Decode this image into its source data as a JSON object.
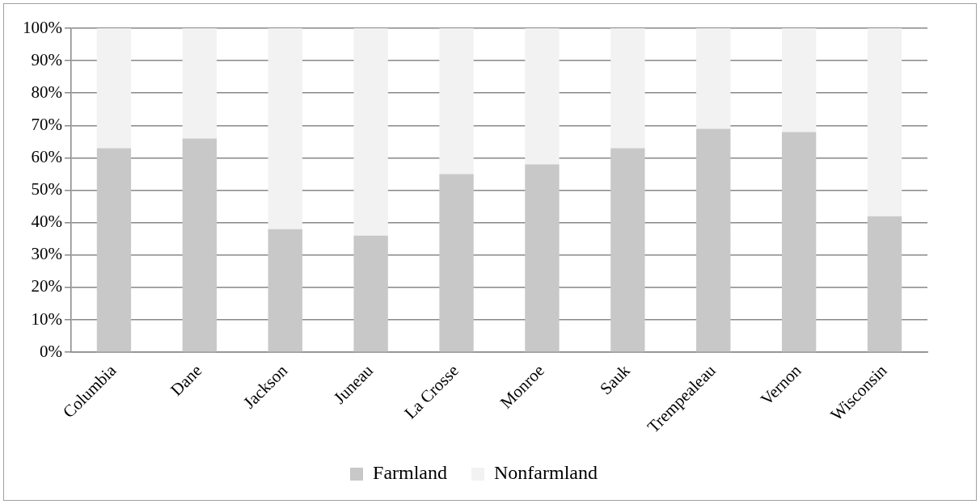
{
  "chart_data": {
    "type": "bar",
    "stacked": true,
    "categories": [
      "Columbia",
      "Dane",
      "Jackson",
      "Juneau",
      "La Crosse",
      "Monroe",
      "Sauk",
      "Trempealeau",
      "Vernon",
      "Wisconsin"
    ],
    "series": [
      {
        "name": "Farmland",
        "color": "#c8c8c8",
        "values": [
          63,
          66,
          38,
          36,
          55,
          58,
          63,
          69,
          68,
          42
        ]
      },
      {
        "name": "Nonfarmland",
        "color": "#f2f2f2",
        "values": [
          37,
          34,
          62,
          64,
          45,
          42,
          37,
          31,
          32,
          58
        ]
      }
    ],
    "ylim": [
      0,
      100
    ],
    "yticks": [
      {
        "value": 0,
        "label": "0%"
      },
      {
        "value": 10,
        "label": "10%"
      },
      {
        "value": 20,
        "label": "20%"
      },
      {
        "value": 30,
        "label": "30%"
      },
      {
        "value": 40,
        "label": "40%"
      },
      {
        "value": 50,
        "label": "50%"
      },
      {
        "value": 60,
        "label": "60%"
      },
      {
        "value": 70,
        "label": "70%"
      },
      {
        "value": 80,
        "label": "80%"
      },
      {
        "value": 90,
        "label": "90%"
      },
      {
        "value": 100,
        "label": "100%"
      }
    ],
    "grid": "y",
    "legend": "bottom"
  }
}
